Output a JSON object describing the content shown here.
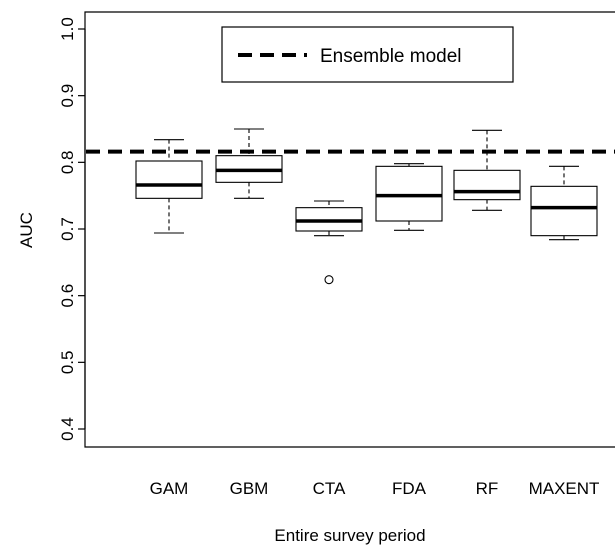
{
  "chart_data": {
    "type": "boxplot",
    "xlabel": "Entire survey period",
    "ylabel": "AUC",
    "ylim": [
      0.4,
      1.0
    ],
    "y_ticks": [
      "0.4",
      "0.5",
      "0.6",
      "0.7",
      "0.8",
      "0.9",
      "1.0"
    ],
    "categories": [
      "GAM",
      "GBM",
      "CTA",
      "FDA",
      "RF",
      "MAXENT"
    ],
    "boxes": [
      {
        "category": "GAM",
        "whisker_low": 0.694,
        "q1": 0.746,
        "median": 0.766,
        "q3": 0.802,
        "whisker_high": 0.834,
        "outliers": []
      },
      {
        "category": "GBM",
        "whisker_low": 0.746,
        "q1": 0.77,
        "median": 0.788,
        "q3": 0.81,
        "whisker_high": 0.85,
        "outliers": []
      },
      {
        "category": "CTA",
        "whisker_low": 0.69,
        "q1": 0.697,
        "median": 0.712,
        "q3": 0.732,
        "whisker_high": 0.742,
        "outliers": [
          0.624
        ]
      },
      {
        "category": "FDA",
        "whisker_low": 0.698,
        "q1": 0.712,
        "median": 0.75,
        "q3": 0.794,
        "whisker_high": 0.798,
        "outliers": []
      },
      {
        "category": "RF",
        "whisker_low": 0.728,
        "q1": 0.744,
        "median": 0.756,
        "q3": 0.788,
        "whisker_high": 0.848,
        "outliers": []
      },
      {
        "category": "MAXENT",
        "whisker_low": 0.684,
        "q1": 0.69,
        "median": 0.732,
        "q3": 0.764,
        "whisker_high": 0.794,
        "outliers": []
      }
    ],
    "reference_line": {
      "label": "Ensemble model",
      "value": 0.816,
      "style": "dashed"
    },
    "legend_position": "top-center",
    "grid": false
  }
}
